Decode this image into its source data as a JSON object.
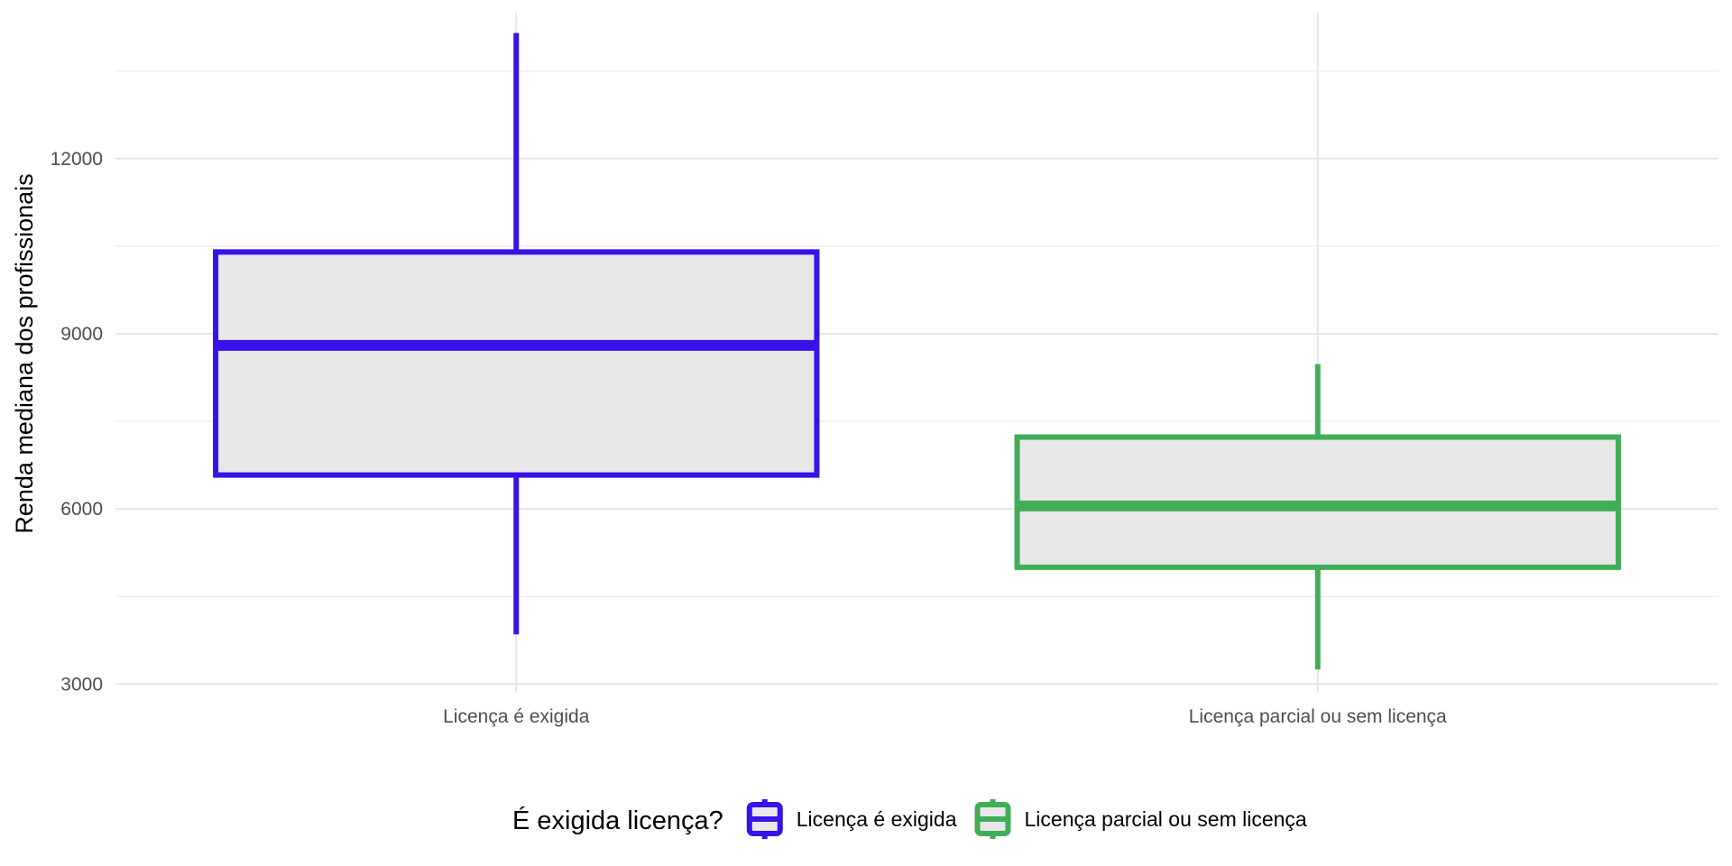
{
  "chart_data": {
    "type": "boxplot",
    "title": "",
    "xlabel": "",
    "ylabel": "Renda mediana dos profissionais",
    "ylim": [
      2850,
      14500
    ],
    "y_ticks": [
      3000,
      6000,
      9000,
      12000
    ],
    "y_tick_labels": [
      "3000",
      "6000",
      "9000",
      "12000"
    ],
    "grid": true,
    "legend_position": "bottom",
    "legend_title": "É exigida licença?",
    "categories": [
      "Licença é exigida",
      "Licença parcial ou sem licença"
    ],
    "series": [
      {
        "name": "Licença é exigida",
        "color": "#3a12e8",
        "fill": "#e8e8e8",
        "whisker_low": 3850,
        "q1": 6580,
        "median": 8800,
        "q3": 10400,
        "whisker_high": 14150
      },
      {
        "name": "Licença parcial ou sem licença",
        "color": "#41ad57",
        "fill": "#e8e8e8",
        "whisker_low": 3250,
        "q1": 5000,
        "median": 6050,
        "q3": 7230,
        "whisker_high": 8480
      }
    ]
  }
}
